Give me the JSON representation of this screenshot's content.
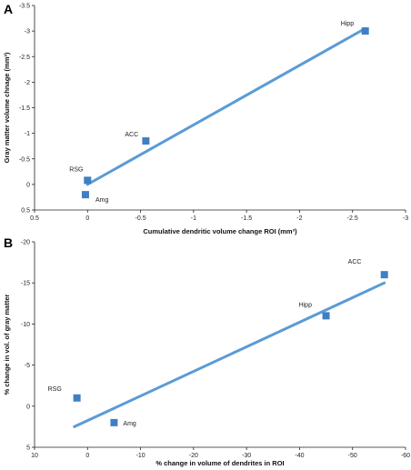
{
  "chart_data": [
    {
      "type": "scatter",
      "panel": "A",
      "xlabel": "Cumulative dendritic volume change  ROI (mm³)",
      "ylabel": "Gray matter volume chnage (mm³)",
      "x_ticks": [
        "0.5",
        "0",
        "-0.5",
        "-1",
        "-1.5",
        "-2",
        "-2.5",
        "-3"
      ],
      "y_ticks": [
        "0.5",
        "0",
        "-0.5",
        "-1",
        "-1.5",
        "-2",
        "-2.5",
        "-3",
        "-3.5"
      ],
      "xlim": [
        0.5,
        -3
      ],
      "ylim": [
        0.5,
        -3.5
      ],
      "x_reversed": true,
      "y_reversed": true,
      "points": [
        {
          "label": "RSG",
          "x": 0.0,
          "y": -0.08
        },
        {
          "label": "Amg",
          "x": 0.02,
          "y": 0.2
        },
        {
          "label": "ACC",
          "x": -0.55,
          "y": -0.85
        },
        {
          "label": "Hipp",
          "x": -2.62,
          "y": -3.0
        }
      ],
      "trendline": {
        "x": [
          0.0,
          -2.62
        ],
        "y": [
          0.0,
          -3.05
        ]
      },
      "colors": {
        "marker": "#3f7fc4",
        "line": "#5b9bd5"
      }
    },
    {
      "type": "scatter",
      "panel": "B",
      "xlabel": "% change in volume of dendrites in ROI",
      "ylabel": "% change in vol. of gray matter",
      "x_ticks": [
        "10",
        "0",
        "-10",
        "-20",
        "-30",
        "-40",
        "-50",
        "-60"
      ],
      "y_ticks": [
        "5",
        "0",
        "-5",
        "-10",
        "-15",
        "-20"
      ],
      "xlim": [
        10,
        -60
      ],
      "ylim": [
        5,
        -20
      ],
      "x_reversed": true,
      "y_reversed": true,
      "points": [
        {
          "label": "RSG",
          "x": 2.0,
          "y": -1.0
        },
        {
          "label": "Amg",
          "x": -5.0,
          "y": 2.0
        },
        {
          "label": "Hipp",
          "x": -45.0,
          "y": -11.0
        },
        {
          "label": "ACC",
          "x": -56.0,
          "y": -16.0
        }
      ],
      "trendline": {
        "x": [
          2.5,
          -56.0
        ],
        "y": [
          2.5,
          -15.0
        ]
      },
      "colors": {
        "marker": "#3f7fc4",
        "line": "#5b9bd5"
      }
    }
  ]
}
